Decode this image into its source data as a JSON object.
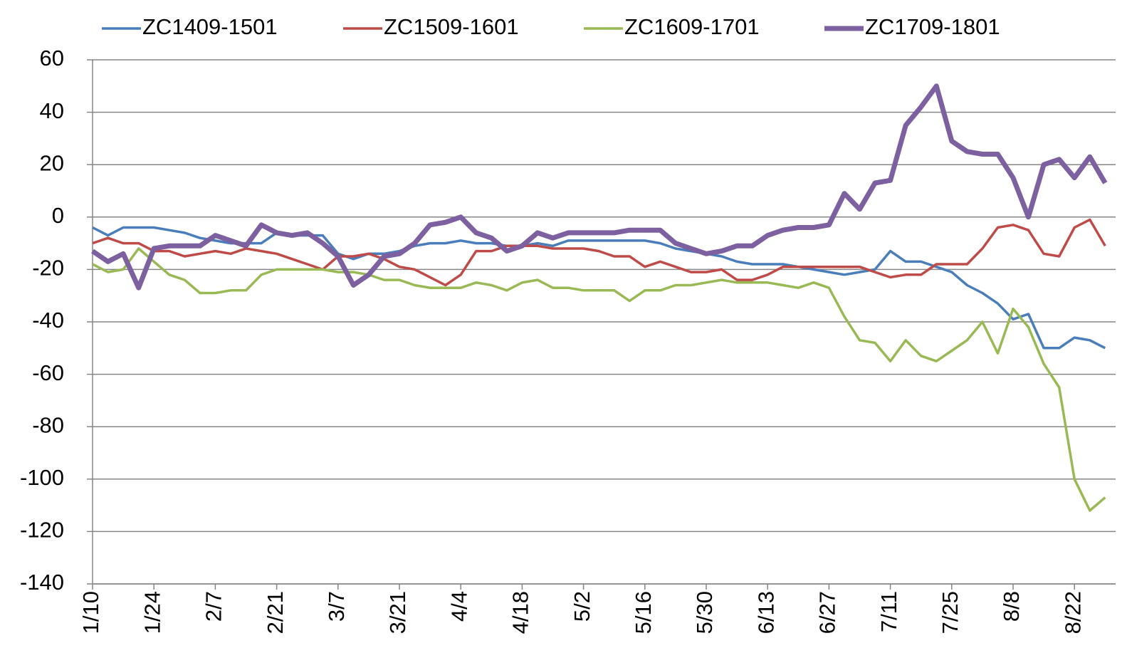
{
  "chart_data": {
    "type": "line",
    "categories": [
      "1/10",
      null,
      null,
      null,
      "1/24",
      null,
      null,
      null,
      "2/7",
      null,
      null,
      null,
      "2/21",
      null,
      null,
      null,
      "3/7",
      null,
      null,
      null,
      "3/21",
      null,
      null,
      null,
      "4/4",
      null,
      null,
      null,
      "4/18",
      null,
      null,
      null,
      "5/2",
      null,
      null,
      null,
      "5/16",
      null,
      null,
      null,
      "5/30",
      null,
      null,
      null,
      "6/13",
      null,
      null,
      null,
      "6/27",
      null,
      null,
      null,
      "7/11",
      null,
      null,
      null,
      "7/25",
      null,
      null,
      null,
      "8/8",
      null,
      null,
      null,
      "8/22",
      null,
      null
    ],
    "series": [
      {
        "name": "ZC1409-1501",
        "color": "#4a7ebb",
        "width": 3.5,
        "values": [
          -4,
          -7,
          -4,
          -4,
          -4,
          -5,
          -6,
          -8,
          -9,
          -10,
          -10,
          -10,
          -6,
          -7,
          -7,
          -7,
          -14,
          -16,
          -14,
          -14,
          -13,
          -11,
          -10,
          -10,
          -9,
          -10,
          -10,
          -11,
          -11,
          -10,
          -11,
          -9,
          -9,
          -9,
          -9,
          -9,
          -9,
          -10,
          -12,
          -13,
          -14,
          -15,
          -17,
          -18,
          -18,
          -18,
          -19,
          -20,
          -21,
          -22,
          -21,
          -20,
          -13,
          -17,
          -17,
          -19,
          -21,
          -26,
          -29,
          -33,
          -39,
          -37,
          -50,
          -50,
          -46,
          -47,
          -50
        ]
      },
      {
        "name": "ZC1509-1601",
        "color": "#be4b48",
        "width": 3.5,
        "values": [
          -10,
          -8,
          -10,
          -10,
          -13,
          -13,
          -15,
          -14,
          -13,
          -14,
          -12,
          -13,
          -14,
          -16,
          -18,
          -20,
          -15,
          -15,
          -14,
          -16,
          -19,
          -20,
          -23,
          -26,
          -22,
          -13,
          -13,
          -11,
          -11,
          -11,
          -12,
          -12,
          -12,
          -13,
          -15,
          -15,
          -19,
          -17,
          -19,
          -21,
          -21,
          -20,
          -24,
          -24,
          -22,
          -19,
          -19,
          -19,
          -19,
          -19,
          -19,
          -21,
          -23,
          -22,
          -22,
          -18,
          -18,
          -18,
          -12,
          -4,
          -3,
          -5,
          -14,
          -15,
          -4,
          -1,
          -11
        ]
      },
      {
        "name": "ZC1609-1701",
        "color": "#98b954",
        "width": 3.5,
        "values": [
          -18,
          -21,
          -20,
          -12,
          -17,
          -22,
          -24,
          -29,
          -29,
          -28,
          -28,
          -22,
          -20,
          -20,
          -20,
          -20,
          -21,
          -21,
          -22,
          -24,
          -24,
          -26,
          -27,
          -27,
          -27,
          -25,
          -26,
          -28,
          -25,
          -24,
          -27,
          -27,
          -28,
          -28,
          -28,
          -32,
          -28,
          -28,
          -26,
          -26,
          -25,
          -24,
          -25,
          -25,
          -25,
          -26,
          -27,
          -25,
          -27,
          -38,
          -47,
          -48,
          -55,
          -47,
          -53,
          -55,
          -51,
          -47,
          -40,
          -52,
          -35,
          -42,
          -56,
          -65,
          -100,
          -112,
          -107
        ]
      },
      {
        "name": "ZC1709-1801",
        "color": "#7d60a0",
        "width": 7,
        "values": [
          -13,
          -17,
          -14,
          -27,
          -12,
          -11,
          -11,
          -11,
          -7,
          -9,
          -11,
          -3,
          -6,
          -7,
          -6,
          -10,
          -15,
          -26,
          -22,
          -15,
          -14,
          -10,
          -3,
          -2,
          0,
          -6,
          -8,
          -13,
          -11,
          -6,
          -8,
          -6,
          -6,
          -6,
          -6,
          -5,
          -5,
          -5,
          -10,
          -12,
          -14,
          -13,
          -11,
          -11,
          -7,
          -5,
          -4,
          -4,
          -3,
          9,
          3,
          13,
          14,
          35,
          42,
          50,
          29,
          25,
          24,
          24,
          15,
          0,
          20,
          22,
          15,
          23,
          13
        ]
      }
    ],
    "ylim": [
      -140,
      60
    ],
    "yticks": [
      -140,
      -120,
      -100,
      -80,
      -60,
      -40,
      -20,
      0,
      20,
      40,
      60
    ],
    "grid": true
  }
}
